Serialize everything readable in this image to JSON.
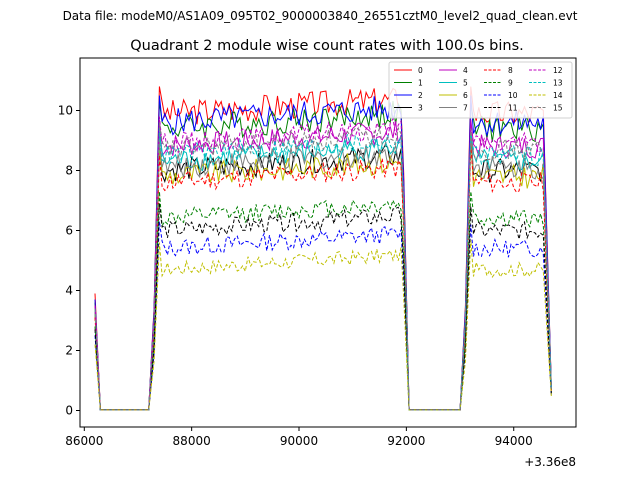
{
  "chart_data": {
    "type": "line",
    "suptitle": "Data file: modeM0/AS1A09_095T02_9000003840_26551cztM0_level2_quad_clean.evt",
    "title": "Quadrant 2 module wise count rates with 100.0s bins.",
    "xlabel": "",
    "ylabel": "",
    "x_offset_label": "+3.36e8",
    "xlim": [
      85920,
      95160
    ],
    "ylim": [
      -0.55,
      11.75
    ],
    "xticks": [
      86000,
      88000,
      90000,
      92000,
      94000
    ],
    "yticks": [
      0,
      2,
      4,
      6,
      8,
      10
    ],
    "grid": false,
    "legend_position": "top-right",
    "gti_segments": [
      [
        87400,
        92000
      ],
      [
        93200,
        94600
      ]
    ],
    "series": [
      {
        "name": "0",
        "color": "#ff0000",
        "dash": "solid",
        "level": 9.9,
        "start": 3.9,
        "peak2": 10.8,
        "amp": 0.45
      },
      {
        "name": "1",
        "color": "#008000",
        "dash": "solid",
        "level": 9.4,
        "start": 3.6,
        "peak2": 10.2,
        "amp": 0.45
      },
      {
        "name": "2",
        "color": "#0000ff",
        "dash": "solid",
        "level": 9.6,
        "start": 3.7,
        "peak2": 10.5,
        "amp": 0.45
      },
      {
        "name": "3",
        "color": "#000000",
        "dash": "solid",
        "level": 8.0,
        "start": 3.3,
        "peak2": 9.3,
        "amp": 0.4
      },
      {
        "name": "4",
        "color": "#bf00bf",
        "dash": "solid",
        "level": 8.8,
        "start": 3.5,
        "peak2": 9.7,
        "amp": 0.4
      },
      {
        "name": "5",
        "color": "#00bfbf",
        "dash": "solid",
        "level": 8.3,
        "start": 3.3,
        "peak2": 9.3,
        "amp": 0.4
      },
      {
        "name": "6",
        "color": "#bfbf00",
        "dash": "solid",
        "level": 7.8,
        "start": 3.2,
        "peak2": 9.1,
        "amp": 0.4
      },
      {
        "name": "7",
        "color": "#808080",
        "dash": "solid",
        "level": 8.1,
        "start": 3.3,
        "peak2": 9.2,
        "amp": 0.4
      },
      {
        "name": "8",
        "color": "#ff0000",
        "dash": "dashed",
        "level": 7.6,
        "start": 3.1,
        "peak2": 8.8,
        "amp": 0.35
      },
      {
        "name": "9",
        "color": "#008000",
        "dash": "dashed",
        "level": 6.4,
        "start": 2.8,
        "peak2": 7.3,
        "amp": 0.3
      },
      {
        "name": "10",
        "color": "#0000ff",
        "dash": "dashed",
        "level": 5.4,
        "start": 2.5,
        "peak2": 6.2,
        "amp": 0.3
      },
      {
        "name": "11",
        "color": "#000000",
        "dash": "dashed",
        "level": 6.0,
        "start": 2.7,
        "peak2": 6.8,
        "amp": 0.3
      },
      {
        "name": "12",
        "color": "#bf00bf",
        "dash": "dashed",
        "level": 8.9,
        "start": 3.5,
        "peak2": 9.6,
        "amp": 0.35
      },
      {
        "name": "13",
        "color": "#00bfbf",
        "dash": "dashed",
        "level": 8.5,
        "start": 3.4,
        "peak2": 9.2,
        "amp": 0.35
      },
      {
        "name": "14",
        "color": "#bfbf00",
        "dash": "dashed",
        "level": 4.7,
        "start": 2.2,
        "peak2": 5.7,
        "amp": 0.25
      },
      {
        "name": "15",
        "color": "#808080",
        "dash": "dashed",
        "level": 8.7,
        "start": 3.4,
        "peak2": 9.4,
        "amp": 0.35
      }
    ]
  }
}
